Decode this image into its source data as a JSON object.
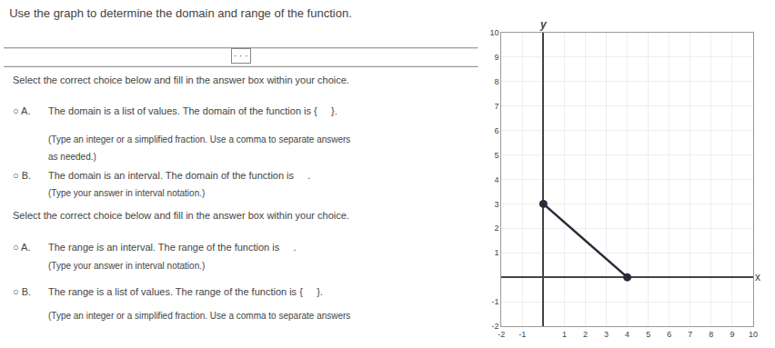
{
  "chart_data": {
    "type": "line",
    "title": "Use the graph to determine the domain and range of the function.",
    "x": [
      0,
      4
    ],
    "values": [
      3,
      0
    ],
    "color": "#2a2a3a",
    "marker": "circle",
    "xlabel": "x",
    "ylabel": "y",
    "xlim": [
      -2,
      10
    ],
    "ylim": [
      -2,
      10
    ],
    "xticks": [
      -2,
      -1,
      1,
      2,
      3,
      4,
      5,
      6,
      7,
      8,
      9,
      10
    ],
    "yticks": [
      -2,
      -1,
      1,
      2,
      3,
      4,
      5,
      6,
      7,
      8,
      9,
      10
    ],
    "grid": true,
    "annotations": [
      [
        "· · ·"
      ],
      [
        "Select the correct choice below and fill in the answer box within your choice."
      ],
      [
        "○ A.",
        "The domain is a list of values. The domain of the function is {",
        "}."
      ],
      [
        "(Type an integer or a simplified fraction. Use a comma to separate answers"
      ],
      [
        "as needed.)"
      ],
      [
        "○ B.",
        "The domain is an interval. The domain of the function is",
        "."
      ],
      [
        "(Type your answer in interval notation.)"
      ],
      [
        "Select the correct choice below and fill in the answer box within your choice."
      ],
      [
        "○ A.",
        "The range is an interval. The range of the function is",
        "."
      ],
      [
        "(Type your answer in interval notation.)"
      ],
      [
        "○ B.",
        "The range is a list of values. The range of the function is {",
        "}."
      ],
      [
        "(Type an integer or a simplified fraction. Use a comma to separate answers"
      ]
    ]
  }
}
